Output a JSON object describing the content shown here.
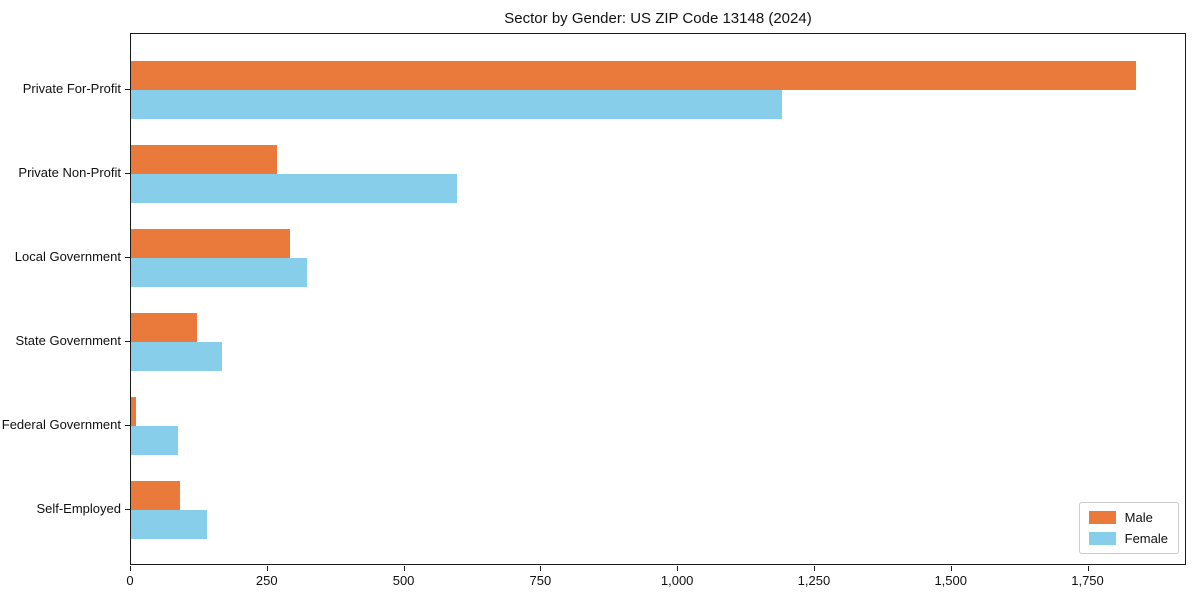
{
  "chart_data": {
    "type": "bar",
    "orientation": "horizontal",
    "title": "Sector by Gender: US ZIP Code 13148 (2024)",
    "xlabel": "",
    "ylabel": "",
    "categories": [
      "Private For-Profit",
      "Private Non-Profit",
      "Local Government",
      "State Government",
      "Federal Government",
      "Self-Employed"
    ],
    "series": [
      {
        "name": "Male",
        "color": "#E97A3C",
        "values": [
          1836,
          267,
          290,
          121,
          9,
          89
        ]
      },
      {
        "name": "Female",
        "color": "#87CEEB",
        "values": [
          1190,
          596,
          321,
          167,
          85,
          138
        ]
      }
    ],
    "xlim": [
      0,
      1930
    ],
    "x_ticks": [
      {
        "value": 0,
        "label": "0"
      },
      {
        "value": 250,
        "label": "250"
      },
      {
        "value": 500,
        "label": "500"
      },
      {
        "value": 750,
        "label": "750"
      },
      {
        "value": 1000,
        "label": "1,000"
      },
      {
        "value": 1250,
        "label": "1,250"
      },
      {
        "value": 1500,
        "label": "1,500"
      },
      {
        "value": 1750,
        "label": "1,750"
      }
    ],
    "grid": false,
    "legend_position": "lower right"
  }
}
